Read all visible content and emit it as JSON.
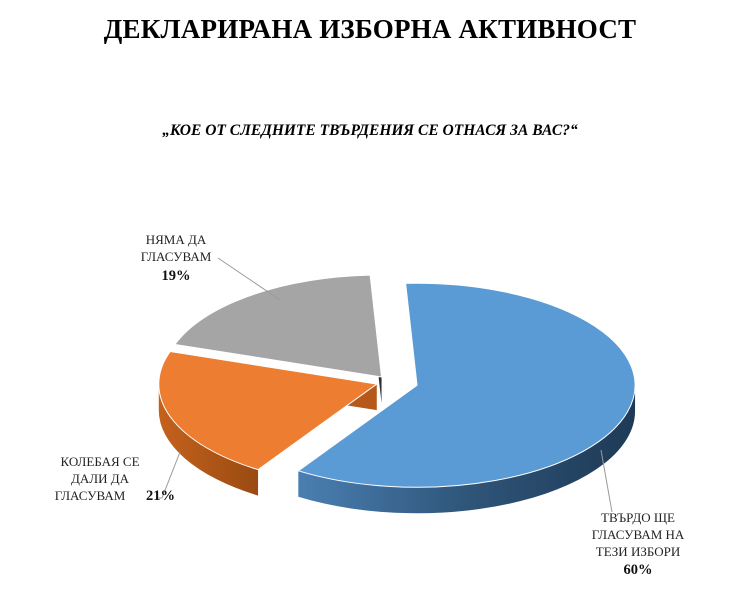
{
  "title": "ДЕКЛАРИРАНА ИЗБОРНА АКТИВНОСТ",
  "subtitle": "„КОЕ ОТ СЛЕДНИТЕ ТВЪРДЕНИЯ СЕ ОТНАСЯ ЗА ВАС?“",
  "chart_data": {
    "type": "pie",
    "style": "3d-exploded",
    "legend": "none",
    "slices": [
      {
        "label_lines": [
          "ТВЪРДО ЩЕ",
          "ГЛАСУВАМ НА",
          "ТЕЗИ ИЗБОРИ"
        ],
        "value": 60,
        "value_label": "60%",
        "color": "#5b9bd5"
      },
      {
        "label_lines": [
          "КОЛЕБАЯ СЕ",
          "ДАЛИ ДА",
          "ГЛАСУВАМ"
        ],
        "value": 21,
        "value_label": "21%",
        "color": "#ed7d31"
      },
      {
        "label_lines": [
          "НЯМА ДА",
          "ГЛАСУВАМ"
        ],
        "value": 19,
        "value_label": "19%",
        "color": "#a5a5a5"
      }
    ]
  }
}
